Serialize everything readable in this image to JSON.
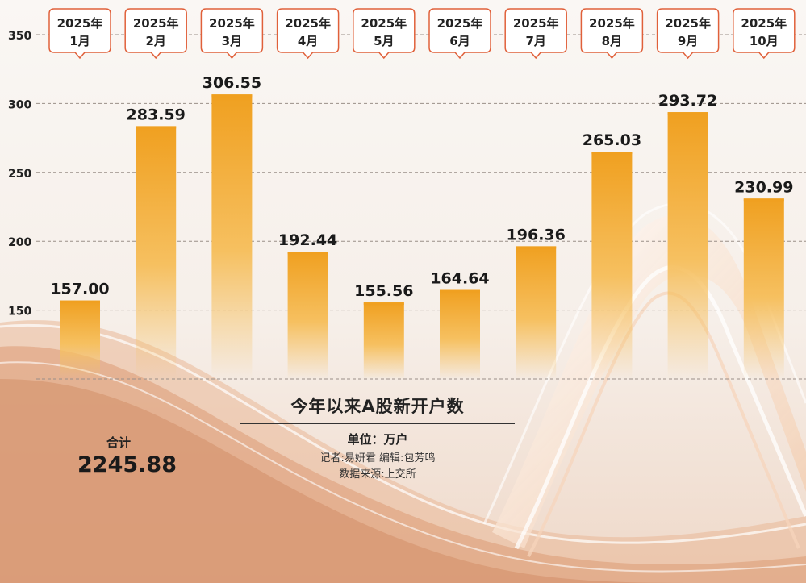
{
  "chart_data": {
    "type": "bar",
    "title": "今年以来A股新开户数",
    "unit_label": "单位：万户",
    "categories": [
      {
        "year": "2025年",
        "month": "1月"
      },
      {
        "year": "2025年",
        "month": "2月"
      },
      {
        "year": "2025年",
        "month": "3月"
      },
      {
        "year": "2025年",
        "month": "4月"
      },
      {
        "year": "2025年",
        "month": "5月"
      },
      {
        "year": "2025年",
        "month": "6月"
      },
      {
        "year": "2025年",
        "month": "7月"
      },
      {
        "year": "2025年",
        "month": "8月"
      },
      {
        "year": "2025年",
        "month": "9月"
      },
      {
        "year": "2025年",
        "month": "10月"
      }
    ],
    "values": [
      157.0,
      283.59,
      306.55,
      192.44,
      155.56,
      164.64,
      196.36,
      265.03,
      293.72,
      230.99
    ],
    "value_labels": [
      "157.00",
      "283.59",
      "306.55",
      "192.44",
      "155.56",
      "164.64",
      "196.36",
      "265.03",
      "293.72",
      "230.99"
    ],
    "yticks": [
      350,
      300,
      250,
      200,
      150
    ],
    "ylim": [
      100,
      350
    ],
    "grid": true,
    "bar_color": "#f0a020"
  },
  "credits": {
    "reporter": "记者:易妍君   编辑:包芳鸣",
    "source": "数据来源:上交所"
  },
  "total": {
    "label": "合计",
    "value": "2245.88"
  }
}
